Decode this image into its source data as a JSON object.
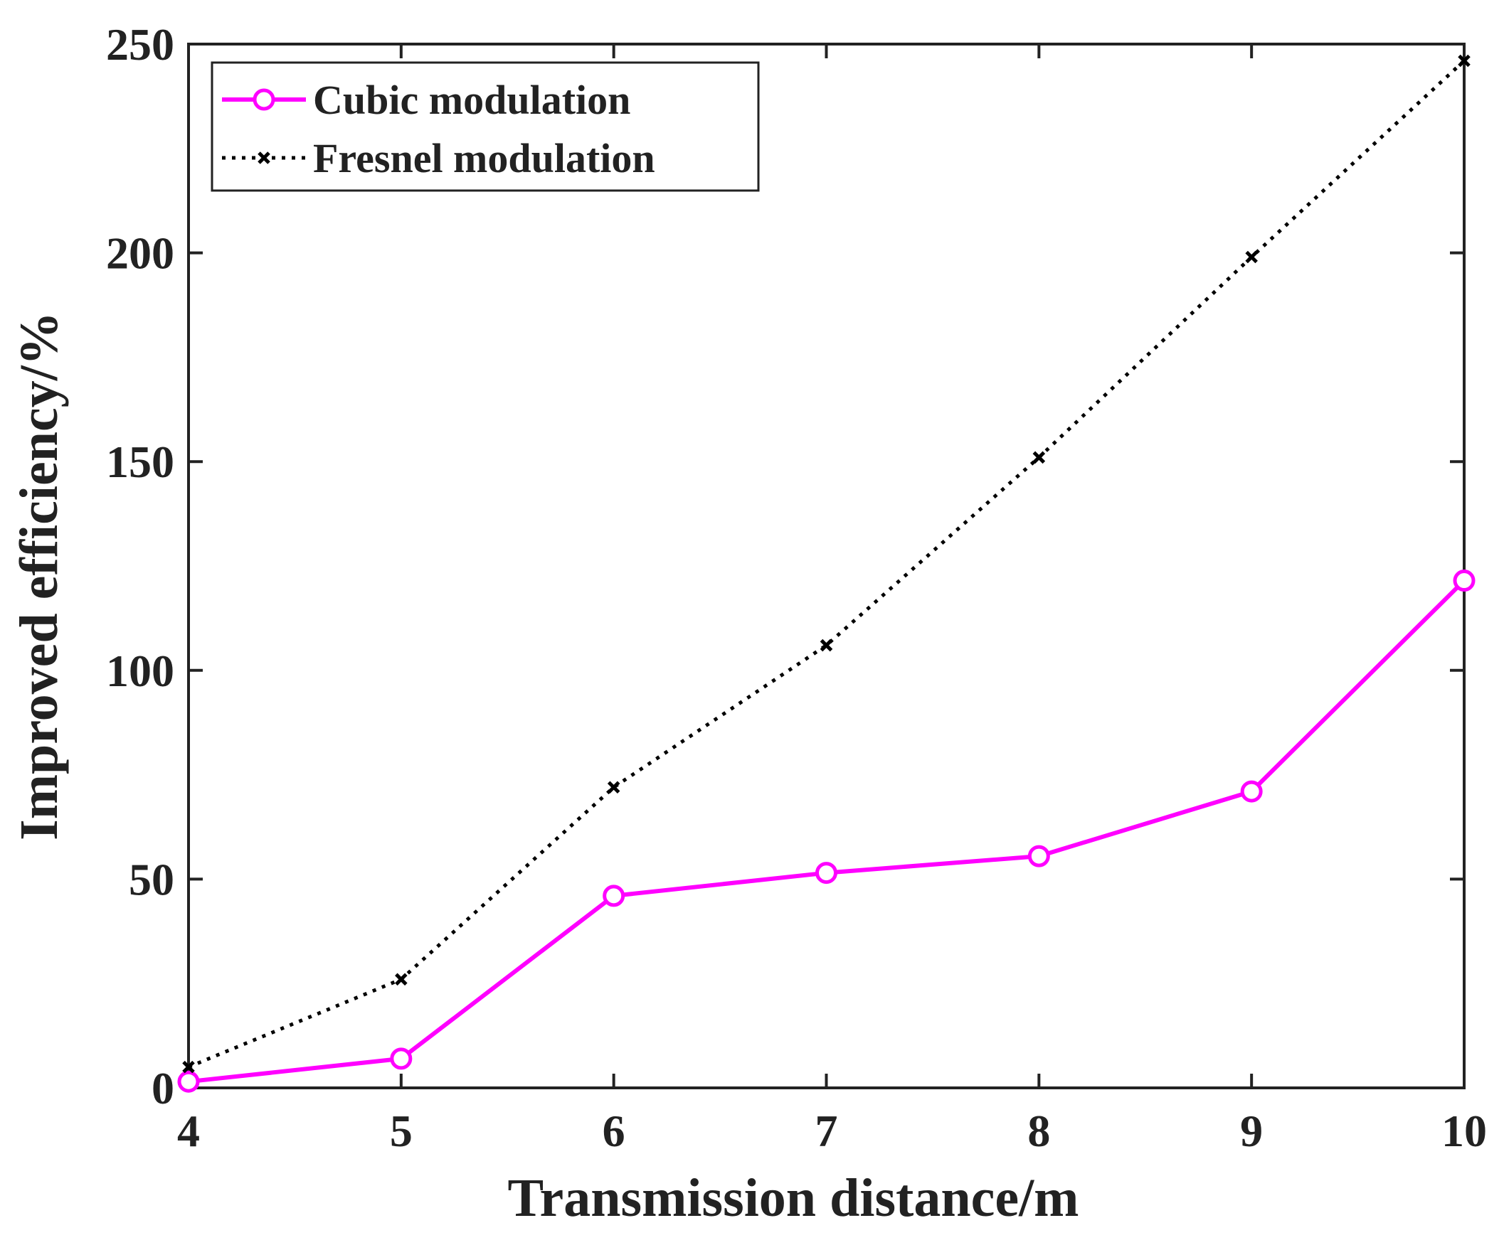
{
  "chart_data": {
    "type": "line",
    "title": "",
    "xlabel": "Transmission distance/m",
    "ylabel": "Improved efficiency/%",
    "xlim": [
      4,
      10
    ],
    "ylim": [
      0,
      250
    ],
    "x_ticks": [
      4,
      5,
      6,
      7,
      8,
      9,
      10
    ],
    "y_ticks": [
      0,
      50,
      100,
      150,
      200,
      250
    ],
    "grid": false,
    "legend_position": "top-left",
    "series": [
      {
        "name": "Cubic modulation",
        "color": "#ff00ff",
        "line_style": "solid",
        "marker": "circle",
        "x": [
          4,
          5,
          6,
          7,
          8,
          9,
          10
        ],
        "y": [
          1.5,
          7,
          46,
          51.5,
          55.5,
          71,
          121.5
        ]
      },
      {
        "name": "Fresnel modulation",
        "color": "#000000",
        "line_style": "dotted",
        "marker": "x",
        "x": [
          4,
          5,
          6,
          7,
          8,
          9,
          10
        ],
        "y": [
          5,
          26,
          72,
          106,
          151,
          199,
          246
        ]
      }
    ]
  }
}
